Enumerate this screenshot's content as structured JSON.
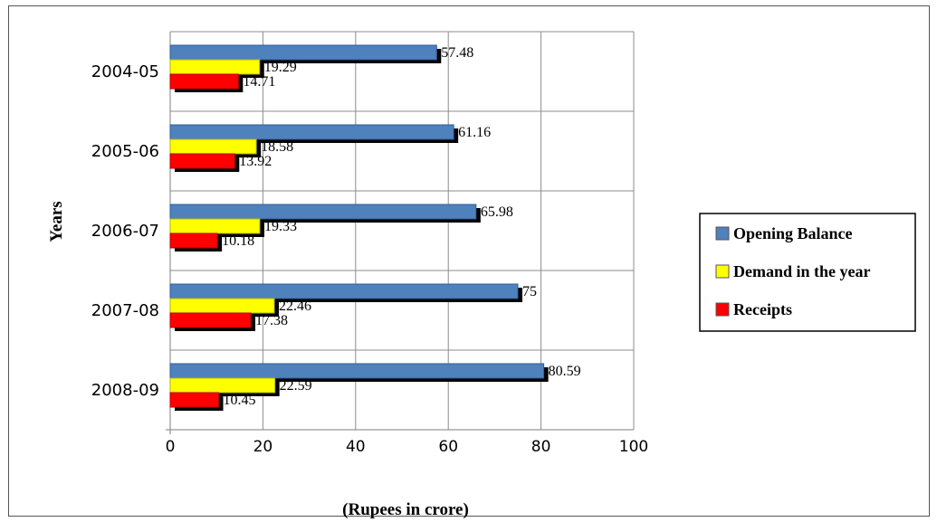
{
  "chart_data": {
    "type": "bar",
    "orientation": "horizontal",
    "categories": [
      "2004-05",
      "2005-06",
      "2006-07",
      "2007-08",
      "2008-09"
    ],
    "series": [
      {
        "name": "Opening Balance",
        "color": "#4f81bd",
        "values": [
          57.48,
          61.16,
          65.98,
          75,
          80.59
        ]
      },
      {
        "name": "Demand in the year",
        "color": "#ffff00",
        "values": [
          19.29,
          18.58,
          19.33,
          22.46,
          22.59
        ]
      },
      {
        "name": "Receipts",
        "color": "#ff0000",
        "values": [
          14.71,
          13.92,
          10.18,
          17.38,
          10.45
        ]
      }
    ],
    "data_labels": [
      [
        "57.48",
        "19.29",
        "14.71"
      ],
      [
        "61.16",
        "18.58",
        "13.92"
      ],
      [
        "65.98",
        "19.33",
        "10.18"
      ],
      [
        "75",
        "22.46",
        "17.38"
      ],
      [
        "80.59",
        "22.59",
        "10.45"
      ]
    ],
    "xlabel": "(Rupees in crore)",
    "ylabel": "Years",
    "xlim": [
      0,
      100
    ],
    "xticks": [
      "0",
      "20",
      "40",
      "60",
      "80",
      "100"
    ],
    "grid": true,
    "legend": "right"
  }
}
